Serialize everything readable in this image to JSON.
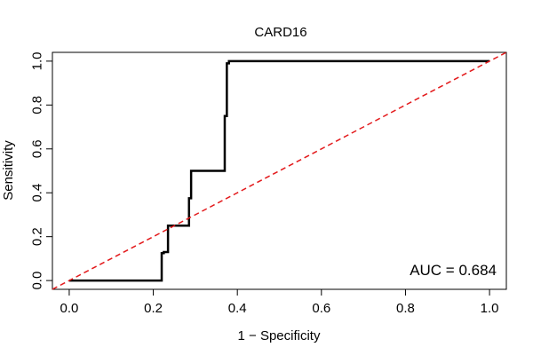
{
  "chart_data": {
    "type": "line",
    "title": "CARD16",
    "xlabel": "1 − Specificity",
    "ylabel": "Sensitivity",
    "xlim": [
      -0.04,
      1.04
    ],
    "ylim": [
      -0.04,
      1.04
    ],
    "x_ticks": [
      0.0,
      0.2,
      0.4,
      0.6,
      0.8,
      1.0
    ],
    "x_tick_labels": [
      "0.0",
      "0.2",
      "0.4",
      "0.6",
      "0.8",
      "1.0"
    ],
    "y_ticks": [
      0.0,
      0.2,
      0.4,
      0.6,
      0.8,
      1.0
    ],
    "y_tick_labels": [
      "0.0",
      "0.2",
      "0.4",
      "0.6",
      "0.8",
      "1.0"
    ],
    "grid": false,
    "series": [
      {
        "style": "solid",
        "color": "#000000",
        "x": [
          0.0,
          0.22,
          0.22,
          0.225,
          0.225,
          0.235,
          0.235,
          0.285,
          0.285,
          0.29,
          0.29,
          0.37,
          0.37,
          0.375,
          0.375,
          0.38,
          0.38,
          1.0
        ],
        "y": [
          0.0,
          0.0,
          0.125,
          0.125,
          0.13,
          0.13,
          0.25,
          0.25,
          0.375,
          0.375,
          0.5,
          0.5,
          0.75,
          0.75,
          0.99,
          0.99,
          1.0,
          1.0
        ]
      },
      {
        "style": "dashed",
        "color": "#e31a1c",
        "x": [
          -0.04,
          1.04
        ],
        "y": [
          -0.04,
          1.04
        ]
      }
    ],
    "annotation": "AUC = 0.684"
  }
}
